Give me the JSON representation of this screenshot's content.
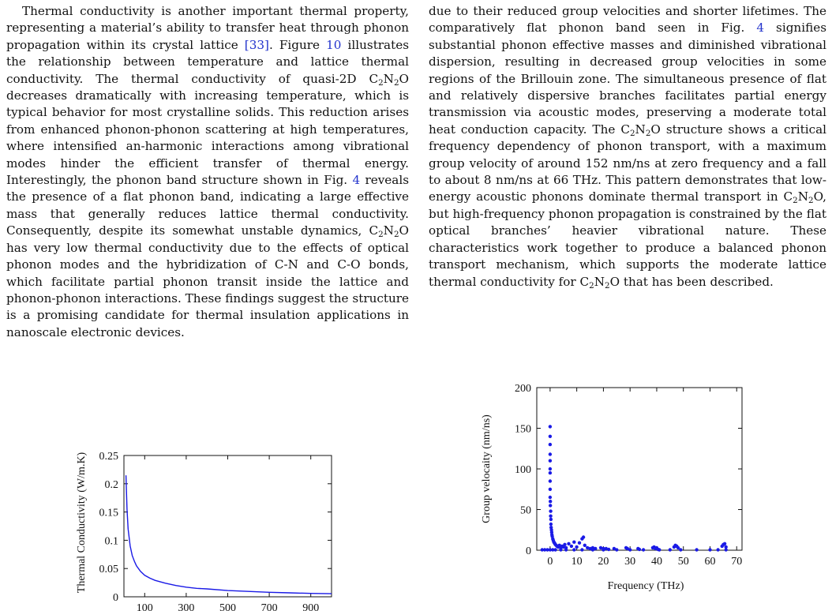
{
  "left_column": {
    "segments": [
      {
        "t": "Thermal conductivity is another important thermal property, representing a material’s ability to transfer heat through phonon propagation within its crystal lattice "
      },
      {
        "t": "[33]",
        "ref": true
      },
      {
        "t": ". Figure "
      },
      {
        "t": "10",
        "ref": true
      },
      {
        "t": " illustrates the relationship between temperature and lattice thermal conductivity. The thermal conductivity of quasi-2D C"
      },
      {
        "t": "2",
        "sub": true
      },
      {
        "t": "N"
      },
      {
        "t": "2",
        "sub": true
      },
      {
        "t": "O decreases dramatically with increasing temperature, which is typical behavior for most crystalline solids. This reduction arises from enhanced phonon-phonon scattering at high temperatures, where intensified an-harmonic interactions among vibrational modes hinder the efficient transfer of thermal energy. Interestingly, the phonon band structure shown in Fig. "
      },
      {
        "t": "4",
        "ref": true
      },
      {
        "t": " reveals the presence of a flat phonon band, indicating a large effective mass that generally reduces lattice thermal conductivity. Consequently, despite its somewhat unstable dynamics, C"
      },
      {
        "t": "2",
        "sub": true
      },
      {
        "t": "N"
      },
      {
        "t": "2",
        "sub": true
      },
      {
        "t": "O has very low thermal conductivity due to the effects of optical phonon modes and the hybridization of C-N and C-O bonds, which facilitate partial phonon transit inside the lattice and phonon-phonon interactions. These findings suggest the structure is a promising candidate for thermal insulation applications in nanoscale electronic devices."
      }
    ]
  },
  "right_column": {
    "segments": [
      {
        "t": "due to their reduced group velocities and shorter lifetimes. The comparatively flat phonon band seen in Fig. "
      },
      {
        "t": "4",
        "ref": true
      },
      {
        "t": " signifies substantial phonon effective masses and diminished vibrational dispersion, resulting in decreased group velocities in some regions of the Brillouin zone. The simultaneous presence of flat and relatively dispersive branches facilitates partial energy transmission via acoustic modes, preserving a moderate total heat conduction capacity. The C"
      },
      {
        "t": "2",
        "sub": true
      },
      {
        "t": "N"
      },
      {
        "t": "2",
        "sub": true
      },
      {
        "t": "O structure shows a critical frequency dependency of phonon transport, with a maximum group velocity of around 152 nm/ns at zero frequency and a fall to about 8 nm/ns at 66 THz. This pattern demonstrates that low-energy acoustic phonons dominate thermal transport in C"
      },
      {
        "t": "2",
        "sub": true
      },
      {
        "t": "N"
      },
      {
        "t": "2",
        "sub": true
      },
      {
        "t": "O, but high-frequency phonon propagation is constrained by the flat optical branches’ heavier vibrational nature. These characteristics work together to produce a balanced phonon transport mechanism, which supports the moderate lattice thermal conductivity for C"
      },
      {
        "t": "2",
        "sub": true
      },
      {
        "t": "N"
      },
      {
        "t": "2",
        "sub": true
      },
      {
        "t": "O that has been described."
      }
    ]
  },
  "chart_data": [
    {
      "type": "line",
      "title": "",
      "xlabel": "",
      "ylabel": "Thermal Conductivity (W/m.K)",
      "xlim": [
        0,
        1000
      ],
      "ylim": [
        0,
        0.25
      ],
      "xticks": [
        "100",
        "300",
        "500",
        "700",
        "900"
      ],
      "yticks": [
        "0",
        "0.05",
        "0.1",
        "0.15",
        "0.2",
        "0.25"
      ],
      "grid": false,
      "color": "#1a1ae6",
      "series": [
        {
          "x": [
            10,
            15,
            20,
            30,
            40,
            50,
            60,
            80,
            100,
            125,
            150,
            200,
            250,
            300,
            350,
            400,
            500,
            600,
            700,
            800,
            900,
            1000
          ],
          "values": [
            0.215,
            0.155,
            0.12,
            0.09,
            0.073,
            0.063,
            0.055,
            0.045,
            0.038,
            0.033,
            0.029,
            0.024,
            0.02,
            0.017,
            0.015,
            0.014,
            0.011,
            0.0095,
            0.008,
            0.007,
            0.006,
            0.0055
          ]
        }
      ]
    },
    {
      "type": "scatter",
      "title": "",
      "xlabel": "Frequency (THz)",
      "ylabel": "Group velocaity (nm/ns)",
      "xlim": [
        -5,
        72
      ],
      "ylim": [
        0,
        200
      ],
      "xticks": [
        "0",
        "10",
        "20",
        "30",
        "40",
        "50",
        "60",
        "70"
      ],
      "yticks": [
        "0",
        "50",
        "100",
        "150",
        "200"
      ],
      "grid": false,
      "color": "#1a1ae6",
      "series": [
        {
          "x": [
            0,
            0,
            0,
            0,
            0,
            0,
            0,
            0,
            0,
            0,
            0.1,
            0.1,
            0.2,
            0.2,
            0.3,
            0.3,
            0.4,
            0.5,
            0.6,
            0.7,
            0.8,
            1.0,
            1.2,
            1.4,
            1.6,
            1.8,
            2.0,
            2.3,
            2.6,
            3.0,
            3.5,
            4.0,
            4.5,
            5.0,
            5.5,
            6.0,
            7.0,
            8.0,
            9.0,
            10.0,
            11.0,
            12.0,
            12.5,
            13.0,
            14.0,
            15.0,
            16.0,
            17.0,
            19.0,
            20.0,
            21.0,
            22.0,
            24.0,
            28.5,
            29.0,
            33.0,
            33.5,
            38.5,
            39.0,
            39.5,
            40.0,
            40.5,
            46.5,
            47.0,
            47.5,
            48.0,
            64.5,
            65.0,
            65.5,
            66.0
          ],
          "values": [
            152,
            140,
            130,
            118,
            110,
            100,
            95,
            85,
            75,
            65,
            60,
            55,
            48,
            42,
            38,
            32,
            28,
            25,
            22,
            19,
            17,
            14,
            12,
            10,
            9,
            8,
            7,
            6,
            5,
            4,
            6,
            3,
            5,
            4,
            7,
            3,
            8,
            5,
            10,
            4,
            9,
            14,
            16,
            6,
            3,
            2,
            3,
            2,
            3,
            2,
            2,
            1,
            2,
            3,
            2,
            2,
            1,
            3,
            4,
            2,
            3,
            1,
            4,
            6,
            5,
            3,
            5,
            7,
            8,
            4
          ]
        },
        {
          "x": [
            -3,
            -2,
            -1,
            0,
            1,
            2,
            4,
            6,
            9,
            12,
            16,
            20,
            25,
            30,
            35,
            41,
            45,
            49,
            55,
            60,
            63,
            66
          ],
          "values": [
            0.5,
            0.5,
            0.5,
            0.5,
            0.5,
            0.5,
            0.5,
            0.5,
            0.5,
            0.5,
            0.5,
            0.5,
            0.5,
            0.5,
            0.5,
            0.5,
            0.5,
            0.5,
            0.5,
            0.5,
            0.5,
            0.5
          ]
        }
      ]
    }
  ]
}
